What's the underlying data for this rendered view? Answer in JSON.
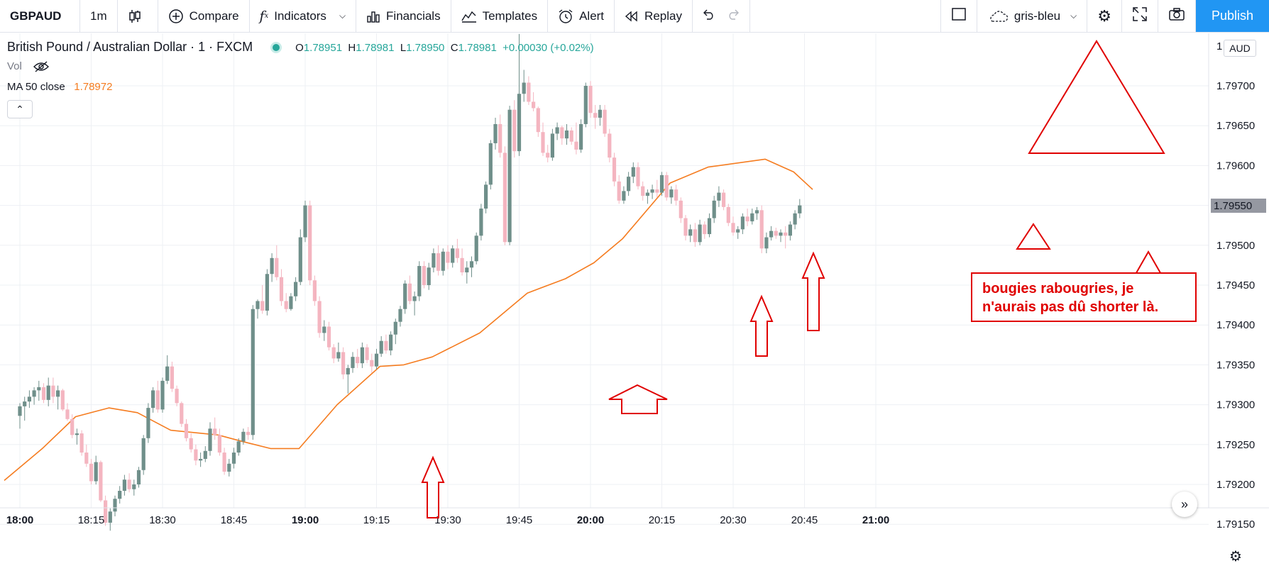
{
  "toolbar": {
    "symbol": "GBPAUD",
    "interval": "1m",
    "compare": "Compare",
    "indicators": "Indicators",
    "financials": "Financials",
    "templates": "Templates",
    "alert": "Alert",
    "replay": "Replay",
    "theme": "gris-bleu",
    "publish": "Publish"
  },
  "legend": {
    "title": "British Pound / Australian Dollar · 1 · FXCM",
    "o_label": "O",
    "o": "1.78951",
    "h_label": "H",
    "h": "1.78981",
    "l_label": "L",
    "l": "1.78950",
    "c_label": "C",
    "c": "1.78981",
    "change": "+0.00030 (+0.02%)",
    "vol": "Vol",
    "ma_label": "MA 50 close",
    "ma_value": "1.78972"
  },
  "currency_badge": "AUD",
  "current_price_label": "1.79550",
  "annotation_text": "bougies rabougries, je n'aurais pas dû shorter là.",
  "chart_data": {
    "type": "candlestick",
    "yticks": [
      "1.79700",
      "1.79650",
      "1.79600",
      "1.79550",
      "1.79500",
      "1.79450",
      "1.79400",
      "1.79350",
      "1.79300",
      "1.79250",
      "1.79200",
      "1.79150"
    ],
    "xticks": [
      "18:00",
      "18:15",
      "18:30",
      "18:45",
      "19:00",
      "19:15",
      "19:30",
      "19:45",
      "20:00",
      "20:15",
      "20:30",
      "20:45",
      "21:00"
    ],
    "bold_xticks": [
      "18:00",
      "19:00",
      "20:00",
      "21:00"
    ],
    "ylim": [
      1.7911,
      1.7976
    ],
    "colors": {
      "up": "#6f8f8a",
      "down": "#f4b5c0",
      "ma": "#f57c20",
      "annotation": "#e00000",
      "marker": "#3a3ad6"
    },
    "candles": [
      [
        1.79286,
        1.79302,
        1.7927,
        1.79298
      ],
      [
        1.79298,
        1.7931,
        1.7928,
        1.79304
      ],
      [
        1.79304,
        1.79318,
        1.79296,
        1.7931
      ],
      [
        1.7931,
        1.79322,
        1.793,
        1.79318
      ],
      [
        1.79318,
        1.7933,
        1.79305,
        1.79322
      ],
      [
        1.79322,
        1.79327,
        1.79302,
        1.79306
      ],
      [
        1.79306,
        1.79334,
        1.79298,
        1.79324
      ],
      [
        1.79324,
        1.79334,
        1.79302,
        1.7931
      ],
      [
        1.7931,
        1.79324,
        1.79294,
        1.79318
      ],
      [
        1.79318,
        1.7932,
        1.79292,
        1.79294
      ],
      [
        1.79294,
        1.79302,
        1.7928,
        1.79282
      ],
      [
        1.79282,
        1.79288,
        1.79258,
        1.79262
      ],
      [
        1.79262,
        1.7927,
        1.7925,
        1.79264
      ],
      [
        1.79264,
        1.79268,
        1.79236,
        1.7924
      ],
      [
        1.7924,
        1.7925,
        1.79222,
        1.79226
      ],
      [
        1.79226,
        1.79232,
        1.792,
        1.79204
      ],
      [
        1.79204,
        1.79236,
        1.792,
        1.79228
      ],
      [
        1.79228,
        1.7923,
        1.79178,
        1.7918
      ],
      [
        1.7918,
        1.79186,
        1.79148,
        1.79152
      ],
      [
        1.79152,
        1.7917,
        1.79142,
        1.79166
      ],
      [
        1.79166,
        1.79186,
        1.7916,
        1.79182
      ],
      [
        1.79182,
        1.79198,
        1.79176,
        1.79192
      ],
      [
        1.79192,
        1.79212,
        1.79186,
        1.79206
      ],
      [
        1.79206,
        1.79214,
        1.7919,
        1.79194
      ],
      [
        1.79194,
        1.79206,
        1.79186,
        1.792
      ],
      [
        1.792,
        1.79222,
        1.79196,
        1.79218
      ],
      [
        1.79218,
        1.79262,
        1.79212,
        1.79258
      ],
      [
        1.79258,
        1.79302,
        1.79252,
        1.79296
      ],
      [
        1.79296,
        1.79322,
        1.7929,
        1.79318
      ],
      [
        1.79318,
        1.7933,
        1.7929,
        1.79294
      ],
      [
        1.79294,
        1.79334,
        1.7929,
        1.7933
      ],
      [
        1.7933,
        1.79362,
        1.79326,
        1.79348
      ],
      [
        1.79348,
        1.79354,
        1.79316,
        1.7932
      ],
      [
        1.7932,
        1.79324,
        1.79298,
        1.79302
      ],
      [
        1.79302,
        1.79304,
        1.79272,
        1.79276
      ],
      [
        1.79276,
        1.79282,
        1.79254,
        1.79258
      ],
      [
        1.79258,
        1.79264,
        1.7924,
        1.79244
      ],
      [
        1.79244,
        1.7925,
        1.79224,
        1.7923
      ],
      [
        1.7923,
        1.7924,
        1.79222,
        1.79232
      ],
      [
        1.79232,
        1.79248,
        1.79228,
        1.79242
      ],
      [
        1.79242,
        1.79278,
        1.79236,
        1.7927
      ],
      [
        1.7927,
        1.79284,
        1.79256,
        1.79262
      ],
      [
        1.79262,
        1.7927,
        1.79236,
        1.7924
      ],
      [
        1.7924,
        1.79246,
        1.79212,
        1.79216
      ],
      [
        1.79216,
        1.79232,
        1.7921,
        1.79226
      ],
      [
        1.79226,
        1.79246,
        1.7922,
        1.7924
      ],
      [
        1.7924,
        1.79258,
        1.79236,
        1.79254
      ],
      [
        1.79254,
        1.7927,
        1.7925,
        1.79266
      ],
      [
        1.79266,
        1.79272,
        1.79256,
        1.79262
      ],
      [
        1.79262,
        1.79425,
        1.79256,
        1.7942
      ],
      [
        1.7942,
        1.79432,
        1.79408,
        1.7943
      ],
      [
        1.7943,
        1.7945,
        1.79414,
        1.79418
      ],
      [
        1.79418,
        1.7947,
        1.79412,
        1.79464
      ],
      [
        1.79464,
        1.7949,
        1.79454,
        1.79484
      ],
      [
        1.79484,
        1.795,
        1.79456,
        1.7946
      ],
      [
        1.7946,
        1.7947,
        1.79424,
        1.7943
      ],
      [
        1.7943,
        1.7944,
        1.79416,
        1.7942
      ],
      [
        1.7942,
        1.7944,
        1.79418,
        1.79436
      ],
      [
        1.79436,
        1.7946,
        1.7943,
        1.79454
      ],
      [
        1.79454,
        1.7952,
        1.7945,
        1.7951
      ],
      [
        1.7951,
        1.79556,
        1.79504,
        1.7955
      ],
      [
        1.7955,
        1.79556,
        1.7945,
        1.79456
      ],
      [
        1.79456,
        1.79462,
        1.79424,
        1.7943
      ],
      [
        1.7943,
        1.79436,
        1.79384,
        1.7939
      ],
      [
        1.7939,
        1.79406,
        1.7938,
        1.79398
      ],
      [
        1.79398,
        1.79404,
        1.79368,
        1.79372
      ],
      [
        1.79372,
        1.79376,
        1.79352,
        1.79358
      ],
      [
        1.79358,
        1.79378,
        1.79354,
        1.79366
      ],
      [
        1.79366,
        1.79372,
        1.79332,
        1.79338
      ],
      [
        1.79338,
        1.7935,
        1.79314,
        1.79346
      ],
      [
        1.79346,
        1.79366,
        1.7934,
        1.7936
      ],
      [
        1.7936,
        1.7937,
        1.79346,
        1.79352
      ],
      [
        1.79352,
        1.79378,
        1.79346,
        1.79372
      ],
      [
        1.79372,
        1.79376,
        1.79352,
        1.79356
      ],
      [
        1.79356,
        1.79364,
        1.7934,
        1.79348
      ],
      [
        1.79348,
        1.7937,
        1.79344,
        1.79364
      ],
      [
        1.79364,
        1.79386,
        1.7936,
        1.7938
      ],
      [
        1.7938,
        1.79388,
        1.79364,
        1.79368
      ],
      [
        1.79368,
        1.79392,
        1.79362,
        1.79388
      ],
      [
        1.79388,
        1.79408,
        1.79376,
        1.79404
      ],
      [
        1.79404,
        1.79424,
        1.79398,
        1.7942
      ],
      [
        1.7942,
        1.79456,
        1.79414,
        1.79452
      ],
      [
        1.79452,
        1.79462,
        1.79426,
        1.7943
      ],
      [
        1.7943,
        1.79442,
        1.79412,
        1.79436
      ],
      [
        1.79436,
        1.7948,
        1.7943,
        1.79474
      ],
      [
        1.79474,
        1.7948,
        1.79446,
        1.7945
      ],
      [
        1.7945,
        1.79478,
        1.79444,
        1.79472
      ],
      [
        1.79472,
        1.79496,
        1.79466,
        1.7949
      ],
      [
        1.7949,
        1.795,
        1.79462,
        1.79468
      ],
      [
        1.79468,
        1.79496,
        1.79462,
        1.79492
      ],
      [
        1.79492,
        1.795,
        1.7947,
        1.79478
      ],
      [
        1.79478,
        1.795,
        1.79472,
        1.79496
      ],
      [
        1.79496,
        1.79508,
        1.79478,
        1.79484
      ],
      [
        1.79484,
        1.79496,
        1.79462,
        1.79466
      ],
      [
        1.79466,
        1.7948,
        1.79452,
        1.79472
      ],
      [
        1.79472,
        1.79486,
        1.7946,
        1.7948
      ],
      [
        1.7948,
        1.79516,
        1.79476,
        1.79512
      ],
      [
        1.79512,
        1.79552,
        1.79506,
        1.79546
      ],
      [
        1.79546,
        1.7958,
        1.7954,
        1.79576
      ],
      [
        1.79576,
        1.79632,
        1.7957,
        1.79628
      ],
      [
        1.79628,
        1.7966,
        1.7962,
        1.79652
      ],
      [
        1.79652,
        1.79664,
        1.7961,
        1.79616
      ],
      [
        1.79616,
        1.79624,
        1.795,
        1.79504
      ],
      [
        1.79504,
        1.79675,
        1.795,
        1.7967
      ],
      [
        1.7967,
        1.79682,
        1.7961,
        1.79618
      ],
      [
        1.79618,
        1.79765,
        1.79612,
        1.7969
      ],
      [
        1.7969,
        1.7972,
        1.7968,
        1.79704
      ],
      [
        1.79704,
        1.79712,
        1.79676,
        1.7968
      ],
      [
        1.7968,
        1.79692,
        1.79668,
        1.79672
      ],
      [
        1.79672,
        1.79674,
        1.79636,
        1.79642
      ],
      [
        1.79642,
        1.79654,
        1.79612,
        1.79616
      ],
      [
        1.79616,
        1.79626,
        1.79604,
        1.7961
      ],
      [
        1.7961,
        1.79646,
        1.79606,
        1.7964
      ],
      [
        1.7964,
        1.79654,
        1.79632,
        1.79648
      ],
      [
        1.79648,
        1.7965,
        1.79626,
        1.79634
      ],
      [
        1.79634,
        1.79652,
        1.79626,
        1.79644
      ],
      [
        1.79644,
        1.79648,
        1.79626,
        1.7963
      ],
      [
        1.7963,
        1.79654,
        1.79614,
        1.7962
      ],
      [
        1.7962,
        1.79658,
        1.79616,
        1.79652
      ],
      [
        1.79652,
        1.79704,
        1.79648,
        1.797
      ],
      [
        1.797,
        1.79706,
        1.7966,
        1.79666
      ],
      [
        1.79666,
        1.79676,
        1.79646,
        1.7966
      ],
      [
        1.7966,
        1.79676,
        1.7965,
        1.7967
      ],
      [
        1.7967,
        1.79676,
        1.79636,
        1.7964
      ],
      [
        1.7964,
        1.79646,
        1.79604,
        1.7961
      ],
      [
        1.7961,
        1.79616,
        1.79574,
        1.7958
      ],
      [
        1.7958,
        1.79588,
        1.79552,
        1.79556
      ],
      [
        1.79556,
        1.79574,
        1.79552,
        1.79568
      ],
      [
        1.79568,
        1.79592,
        1.79562,
        1.79586
      ],
      [
        1.79586,
        1.79604,
        1.79578,
        1.79598
      ],
      [
        1.79598,
        1.79604,
        1.7957,
        1.79574
      ],
      [
        1.79574,
        1.7958,
        1.79556,
        1.79562
      ],
      [
        1.79562,
        1.7957,
        1.79552,
        1.79566
      ],
      [
        1.79566,
        1.79576,
        1.79558,
        1.7957
      ],
      [
        1.7957,
        1.79582,
        1.7956,
        1.79566
      ],
      [
        1.79566,
        1.79592,
        1.79562,
        1.79588
      ],
      [
        1.79588,
        1.79592,
        1.79556,
        1.7956
      ],
      [
        1.7956,
        1.79574,
        1.79552,
        1.7957
      ],
      [
        1.7957,
        1.79576,
        1.7955,
        1.79556
      ],
      [
        1.79556,
        1.7956,
        1.79528,
        1.79534
      ],
      [
        1.79534,
        1.79538,
        1.79506,
        1.79512
      ],
      [
        1.79512,
        1.79526,
        1.79504,
        1.7952
      ],
      [
        1.7952,
        1.79528,
        1.79498,
        1.79504
      ],
      [
        1.79504,
        1.79532,
        1.795,
        1.79526
      ],
      [
        1.79526,
        1.7953,
        1.79508,
        1.79514
      ],
      [
        1.79514,
        1.7954,
        1.7951,
        1.79534
      ],
      [
        1.79534,
        1.79562,
        1.79528,
        1.79556
      ],
      [
        1.79556,
        1.79574,
        1.79548,
        1.79566
      ],
      [
        1.79566,
        1.7957,
        1.79544,
        1.79548
      ],
      [
        1.79548,
        1.79552,
        1.79524,
        1.79528
      ],
      [
        1.79528,
        1.79536,
        1.79512,
        1.79516
      ],
      [
        1.79516,
        1.79524,
        1.79508,
        1.7952
      ],
      [
        1.7952,
        1.7954,
        1.79514,
        1.79536
      ],
      [
        1.79536,
        1.79546,
        1.79524,
        1.7953
      ],
      [
        1.7953,
        1.79546,
        1.79526,
        1.7954
      ],
      [
        1.7954,
        1.79548,
        1.79532,
        1.79544
      ],
      [
        1.79544,
        1.7955,
        1.7949,
        1.79496
      ],
      [
        1.79496,
        1.79516,
        1.7949,
        1.7951
      ],
      [
        1.7951,
        1.79524,
        1.79506,
        1.79518
      ],
      [
        1.79518,
        1.79522,
        1.79508,
        1.79512
      ],
      [
        1.79512,
        1.7952,
        1.79504,
        1.79516
      ],
      [
        1.79516,
        1.79524,
        1.79496,
        1.79512
      ],
      [
        1.79512,
        1.7953,
        1.79506,
        1.79526
      ],
      [
        1.79526,
        1.79544,
        1.7952,
        1.7954
      ],
      [
        1.7954,
        1.79558,
        1.79534,
        1.7955
      ]
    ],
    "ma": [
      [
        0,
        1.79205
      ],
      [
        8,
        1.79245
      ],
      [
        15,
        1.79285
      ],
      [
        22,
        1.79296
      ],
      [
        28,
        1.7929
      ],
      [
        35,
        1.79268
      ],
      [
        45,
        1.79262
      ],
      [
        50,
        1.79254
      ],
      [
        56,
        1.79245
      ],
      [
        62,
        1.79245
      ],
      [
        70,
        1.793
      ],
      [
        79,
        1.79348
      ],
      [
        84,
        1.7935
      ],
      [
        90,
        1.7936
      ],
      [
        100,
        1.7939
      ],
      [
        110,
        1.7944
      ],
      [
        118,
        1.79458
      ],
      [
        124,
        1.79478
      ],
      [
        130,
        1.79508
      ],
      [
        140,
        1.79578
      ],
      [
        148,
        1.79598
      ],
      [
        160,
        1.79608
      ],
      [
        166,
        1.79592
      ],
      [
        170,
        1.7957
      ]
    ]
  }
}
